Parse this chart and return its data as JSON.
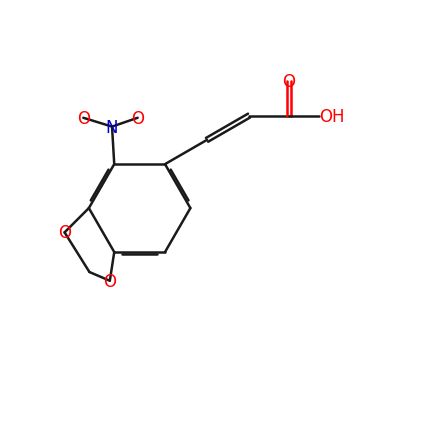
{
  "bg_color": "#ffffff",
  "bond_color": "#1a1a1a",
  "oxygen_color": "#ff0000",
  "nitrogen_color": "#0000cc",
  "line_width": 1.8,
  "dbo": 0.055,
  "font_size": 12,
  "fig_width": 4.47,
  "fig_height": 4.27,
  "xlim": [
    0,
    10
  ],
  "ylim": [
    1,
    9
  ]
}
